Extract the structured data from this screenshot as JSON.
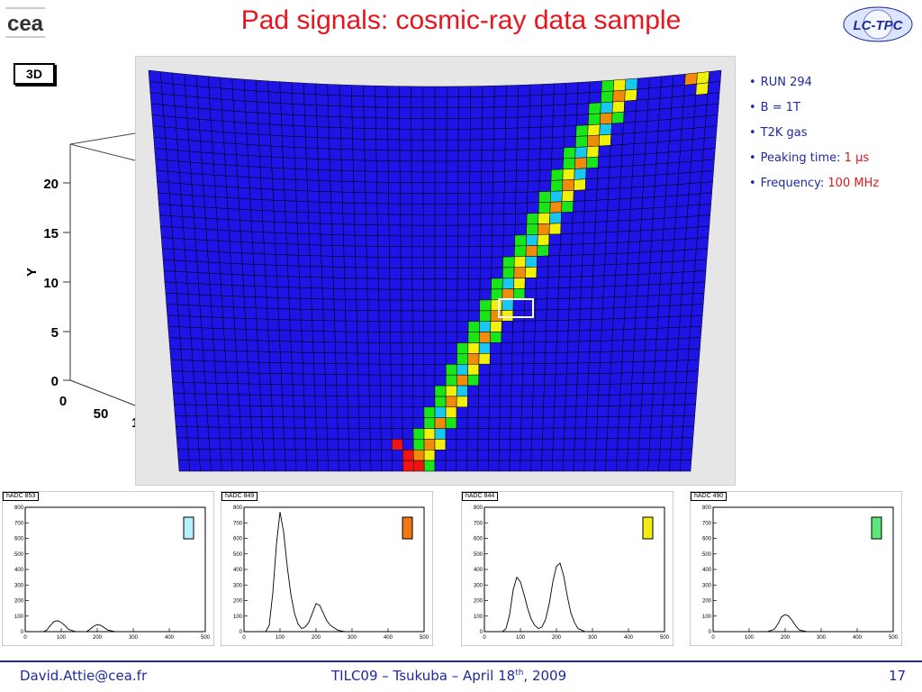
{
  "header": {
    "title": "Pad signals: cosmic-ray data sample",
    "logo_left_text": "cea",
    "logo_right_text": "LC-TPC"
  },
  "view_badge": "3D",
  "axis_3d": {
    "ylabel": "Y",
    "yticks": [
      "20",
      "15",
      "10",
      "5",
      "0"
    ],
    "xticks": [
      "0",
      "50",
      "1"
    ]
  },
  "info": [
    {
      "label": "RUN 294",
      "value": ""
    },
    {
      "label": "B = 1T",
      "value": ""
    },
    {
      "label": "T2K gas",
      "value": ""
    },
    {
      "label": "Peaking time: ",
      "value": "1 μs"
    },
    {
      "label": "Frequency: ",
      "value": "100 MHz"
    }
  ],
  "colors": {
    "title": "#e8141e",
    "footer": "#1e2aa0",
    "pad_background": "#1e14e6",
    "highlight": "#ffffff"
  },
  "chart_data": [
    {
      "type": "line",
      "title": "hADC 853",
      "marker_color": "#b4f0f5",
      "xlim": [
        0,
        500
      ],
      "ylim": [
        0,
        800
      ],
      "xticks": [
        0,
        100,
        200,
        300,
        400,
        500
      ],
      "yticks": [
        0,
        100,
        200,
        300,
        400,
        500,
        600,
        700,
        800
      ],
      "x": [
        0,
        50,
        60,
        70,
        80,
        90,
        100,
        110,
        120,
        140,
        170,
        180,
        190,
        200,
        210,
        220,
        230,
        250,
        500
      ],
      "y": [
        0,
        0,
        10,
        40,
        65,
        70,
        60,
        40,
        15,
        0,
        0,
        15,
        35,
        45,
        40,
        25,
        10,
        0,
        0
      ]
    },
    {
      "type": "line",
      "title": "hADC 849",
      "marker_color": "#f07814",
      "xlim": [
        0,
        500
      ],
      "ylim": [
        0,
        800
      ],
      "xticks": [
        0,
        100,
        200,
        300,
        400,
        500
      ],
      "yticks": [
        0,
        100,
        200,
        300,
        400,
        500,
        600,
        700,
        800
      ],
      "x": [
        0,
        60,
        70,
        80,
        90,
        100,
        110,
        120,
        130,
        140,
        150,
        160,
        170,
        180,
        190,
        200,
        210,
        220,
        230,
        240,
        260,
        280,
        500
      ],
      "y": [
        0,
        0,
        40,
        250,
        560,
        770,
        640,
        420,
        240,
        120,
        50,
        20,
        30,
        60,
        120,
        180,
        170,
        120,
        70,
        40,
        10,
        0,
        0
      ]
    },
    {
      "type": "line",
      "title": "hADC 844",
      "marker_color": "#f5eb14",
      "xlim": [
        0,
        500
      ],
      "ylim": [
        0,
        800
      ],
      "xticks": [
        0,
        100,
        200,
        300,
        400,
        500
      ],
      "yticks": [
        0,
        100,
        200,
        300,
        400,
        500,
        600,
        700,
        800
      ],
      "x": [
        0,
        50,
        60,
        70,
        80,
        90,
        100,
        110,
        120,
        130,
        140,
        150,
        160,
        170,
        180,
        190,
        200,
        210,
        220,
        230,
        240,
        250,
        260,
        280,
        500
      ],
      "y": [
        0,
        0,
        20,
        110,
        270,
        350,
        320,
        240,
        150,
        80,
        40,
        20,
        30,
        80,
        180,
        320,
        420,
        440,
        360,
        230,
        120,
        60,
        20,
        0,
        0
      ]
    },
    {
      "type": "line",
      "title": "hADC 490",
      "marker_color": "#5ae678",
      "xlim": [
        0,
        500
      ],
      "ylim": [
        0,
        800
      ],
      "xticks": [
        0,
        100,
        200,
        300,
        400,
        500
      ],
      "yticks": [
        0,
        100,
        200,
        300,
        400,
        500,
        600,
        700,
        800
      ],
      "x": [
        0,
        150,
        170,
        180,
        190,
        200,
        210,
        220,
        230,
        240,
        260,
        500
      ],
      "y": [
        0,
        0,
        15,
        50,
        95,
        110,
        100,
        70,
        35,
        10,
        0,
        0
      ]
    }
  ],
  "footer": {
    "email": "David.Attie@cea.fr",
    "event_prefix": "TILC09 – Tsukuba – April 18",
    "event_sup": "th",
    "event_suffix": ", 2009",
    "page": "17"
  }
}
